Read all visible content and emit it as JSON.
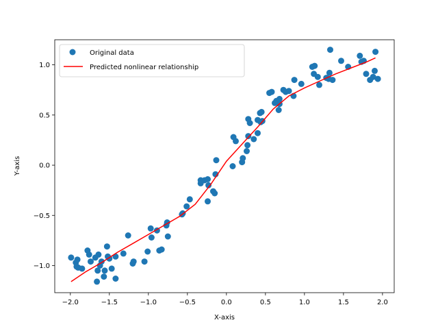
{
  "chart_data": {
    "type": "scatter",
    "xlabel": "X-axis",
    "ylabel": "Y-axis",
    "xlim": [
      -2.2,
      2.15
    ],
    "ylim": [
      -1.27,
      1.25
    ],
    "x_ticks": [
      -2.0,
      -1.5,
      -1.0,
      -0.5,
      0.0,
      0.5,
      1.0,
      1.5,
      2.0
    ],
    "x_tick_labels": [
      "−2.0",
      "−1.5",
      "−1.0",
      "−0.5",
      "0.0",
      "0.5",
      "1.0",
      "1.5",
      "2.0"
    ],
    "y_ticks": [
      -1.0,
      -0.5,
      0.0,
      0.5,
      1.0
    ],
    "y_tick_labels": [
      "−1.0",
      "−0.5",
      "0.0",
      "0.5",
      "1.0"
    ],
    "grid": false,
    "legend_position": "top-left",
    "series": [
      {
        "name": "Original data",
        "kind": "scatter",
        "color": "#1f77b4",
        "points": [
          [
            -1.99,
            -0.92
          ],
          [
            -1.93,
            -0.97
          ],
          [
            -1.92,
            -1.01
          ],
          [
            -1.91,
            -0.94
          ],
          [
            -1.9,
            -1.02
          ],
          [
            -1.85,
            -1.03
          ],
          [
            -1.78,
            -0.85
          ],
          [
            -1.76,
            -0.89
          ],
          [
            -1.74,
            -0.96
          ],
          [
            -1.68,
            -0.92
          ],
          [
            -1.66,
            -1.16
          ],
          [
            -1.65,
            -1.05
          ],
          [
            -1.64,
            -0.89
          ],
          [
            -1.62,
            -1.0
          ],
          [
            -1.6,
            -0.96
          ],
          [
            -1.57,
            -1.11
          ],
          [
            -1.56,
            -1.05
          ],
          [
            -1.53,
            -0.81
          ],
          [
            -1.52,
            -0.91
          ],
          [
            -1.5,
            -0.93
          ],
          [
            -1.47,
            -1.03
          ],
          [
            -1.42,
            -0.91
          ],
          [
            -1.42,
            -1.13
          ],
          [
            -1.32,
            -0.88
          ],
          [
            -1.26,
            -0.7
          ],
          [
            -1.2,
            -0.98
          ],
          [
            -1.19,
            -0.96
          ],
          [
            -1.05,
            -0.96
          ],
          [
            -1.01,
            -0.86
          ],
          [
            -0.97,
            -0.63
          ],
          [
            -0.96,
            -0.72
          ],
          [
            -0.89,
            -0.65
          ],
          [
            -0.86,
            -0.85
          ],
          [
            -0.83,
            -0.84
          ],
          [
            -0.77,
            -0.6
          ],
          [
            -0.76,
            -0.57
          ],
          [
            -0.75,
            -0.71
          ],
          [
            -0.57,
            -0.49
          ],
          [
            -0.56,
            -0.48
          ],
          [
            -0.51,
            -0.41
          ],
          [
            -0.47,
            -0.34
          ],
          [
            -0.33,
            -0.15
          ],
          [
            -0.33,
            -0.18
          ],
          [
            -0.28,
            -0.15
          ],
          [
            -0.24,
            -0.14
          ],
          [
            -0.23,
            -0.2
          ],
          [
            -0.24,
            -0.36
          ],
          [
            -0.17,
            -0.26
          ],
          [
            -0.15,
            -0.28
          ],
          [
            -0.14,
            -0.09
          ],
          [
            -0.13,
            0.05
          ],
          [
            0.08,
            -0.01
          ],
          [
            0.09,
            0.28
          ],
          [
            0.12,
            0.24
          ],
          [
            0.2,
            0.03
          ],
          [
            0.21,
            0.07
          ],
          [
            0.26,
            0.14
          ],
          [
            0.27,
            0.2
          ],
          [
            0.28,
            0.29
          ],
          [
            0.28,
            0.46
          ],
          [
            0.3,
            0.42
          ],
          [
            0.35,
            0.26
          ],
          [
            0.4,
            0.32
          ],
          [
            0.4,
            0.45
          ],
          [
            0.43,
            0.52
          ],
          [
            0.44,
            0.43
          ],
          [
            0.45,
            0.53
          ],
          [
            0.46,
            0.44
          ],
          [
            0.55,
            0.72
          ],
          [
            0.58,
            0.73
          ],
          [
            0.62,
            0.62
          ],
          [
            0.64,
            0.64
          ],
          [
            0.67,
            0.55
          ],
          [
            0.68,
            0.61
          ],
          [
            0.68,
            0.66
          ],
          [
            0.73,
            0.75
          ],
          [
            0.76,
            0.73
          ],
          [
            0.8,
            0.74
          ],
          [
            0.86,
            0.69
          ],
          [
            0.87,
            0.85
          ],
          [
            0.96,
            0.81
          ],
          [
            1.1,
            0.98
          ],
          [
            1.12,
            0.91
          ],
          [
            1.13,
            0.99
          ],
          [
            1.17,
            0.88
          ],
          [
            1.19,
            0.8
          ],
          [
            1.28,
            0.87
          ],
          [
            1.31,
            0.86
          ],
          [
            1.32,
            0.92
          ],
          [
            1.33,
            1.15
          ],
          [
            1.36,
            0.85
          ],
          [
            1.47,
            1.04
          ],
          [
            1.56,
            0.98
          ],
          [
            1.71,
            1.09
          ],
          [
            1.73,
            1.03
          ],
          [
            1.76,
            1.04
          ],
          [
            1.79,
            0.91
          ],
          [
            1.84,
            0.85
          ],
          [
            1.88,
            0.88
          ],
          [
            1.9,
            0.94
          ],
          [
            1.91,
            1.13
          ],
          [
            1.94,
            0.86
          ]
        ]
      },
      {
        "name": "Predicted nonlinear relationship",
        "kind": "line",
        "color": "#ff0000",
        "points": [
          [
            -1.99,
            -1.16
          ],
          [
            -1.8,
            -1.06
          ],
          [
            -1.6,
            -0.97
          ],
          [
            -1.4,
            -0.87
          ],
          [
            -1.2,
            -0.78
          ],
          [
            -1.0,
            -0.69
          ],
          [
            -0.8,
            -0.6
          ],
          [
            -0.6,
            -0.51
          ],
          [
            -0.4,
            -0.39
          ],
          [
            -0.2,
            -0.19
          ],
          [
            0.0,
            0.04
          ],
          [
            0.2,
            0.21
          ],
          [
            0.4,
            0.38
          ],
          [
            0.6,
            0.56
          ],
          [
            0.8,
            0.69
          ],
          [
            1.0,
            0.77
          ],
          [
            1.2,
            0.84
          ],
          [
            1.4,
            0.91
          ],
          [
            1.6,
            0.97
          ],
          [
            1.8,
            1.03
          ],
          [
            1.91,
            1.07
          ]
        ]
      }
    ]
  }
}
